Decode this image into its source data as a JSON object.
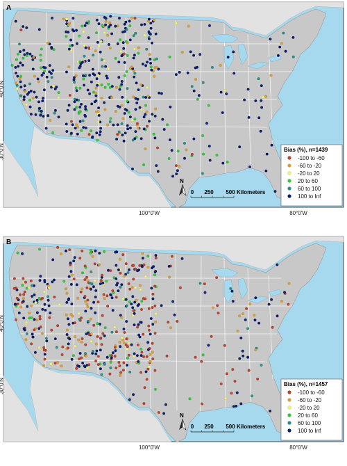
{
  "panels": [
    {
      "id": "A",
      "letter": "A",
      "lat_labels": [
        "40°0'N",
        "30°0'N"
      ],
      "lon_labels": [
        "100°0'W",
        "80°0'W"
      ],
      "legend": {
        "title": "Bias (%), n=1439",
        "items": [
          {
            "label": "-100 to -60",
            "color": "#b9432f"
          },
          {
            "label": "-60 to -20",
            "color": "#d8a03a"
          },
          {
            "label": "-20 to 20",
            "color": "#f2f27a"
          },
          {
            "label": "20 to 60",
            "color": "#33c83c"
          },
          {
            "label": "60 to 100",
            "color": "#2a8f86"
          },
          {
            "label": "100 to Inf",
            "color": "#0e1f6b"
          }
        ]
      },
      "scale": {
        "ticks": [
          "0",
          "250",
          "500"
        ],
        "unit": "Kilometers",
        "north": "N"
      },
      "weights": [
        0.05,
        0.12,
        0.05,
        0.13,
        0.07,
        0.58
      ]
    },
    {
      "id": "B",
      "letter": "B",
      "lat_labels": [
        "40°0'N",
        "30°0'N"
      ],
      "lon_labels": [
        "100°0'W",
        "80°0'W"
      ],
      "legend": {
        "title": "Bias (%), n=1457",
        "items": [
          {
            "label": "-100 to -60",
            "color": "#b9432f"
          },
          {
            "label": "-60 to -20",
            "color": "#d8a03a"
          },
          {
            "label": "-20 to 20",
            "color": "#f2f27a"
          },
          {
            "label": "20 to 60",
            "color": "#33c83c"
          },
          {
            "label": "60 to 100",
            "color": "#2a8f86"
          },
          {
            "label": "100 to Inf",
            "color": "#0e1f6b"
          }
        ]
      },
      "scale": {
        "ticks": [
          "0",
          "250",
          "500"
        ],
        "unit": "Kilometers",
        "north": "N"
      },
      "weights": [
        0.28,
        0.12,
        0.05,
        0.08,
        0.05,
        0.42
      ]
    }
  ],
  "colors": {
    "water": "#a6d8ee",
    "land_us": "#c8c8c8",
    "land_other": "#e2e2e2",
    "state_border": "#ffffff"
  }
}
